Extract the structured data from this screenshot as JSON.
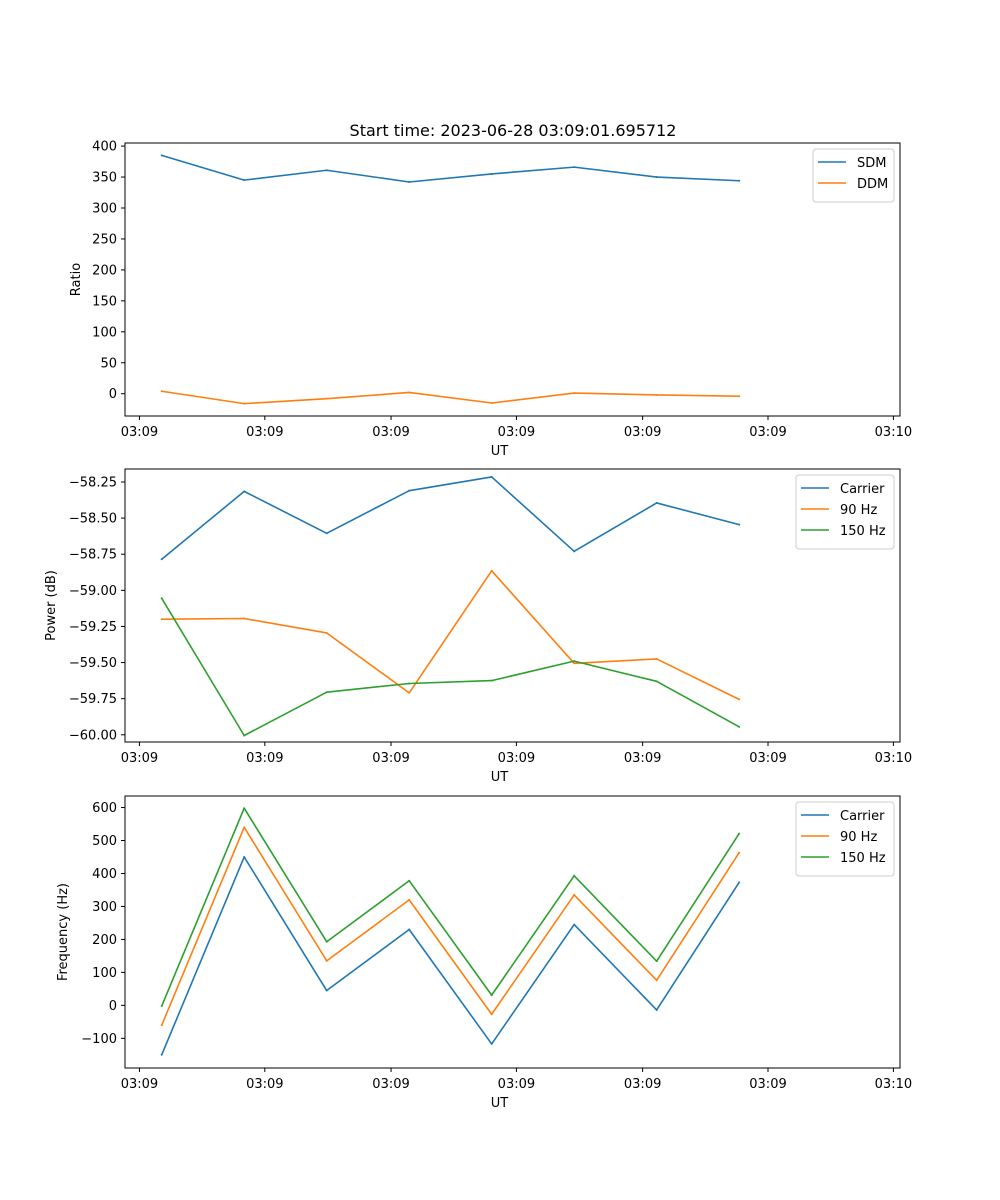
{
  "figure": {
    "title": "Start time: 2023-06-28 03:09:01.695712"
  },
  "chart_data": [
    {
      "type": "line",
      "title": "Start time: 2023-06-28 03:09:01.695712",
      "xlabel": "UT",
      "ylabel": "Ratio",
      "x": [
        1,
        2,
        3,
        4,
        5,
        6,
        7,
        8
      ],
      "xlim": [
        0.555,
        9.95
      ],
      "xticks": [
        0.73,
        2.25,
        3.78,
        5.3,
        6.83,
        8.35,
        9.87
      ],
      "xtick_labels": [
        "03:09",
        "03:09",
        "03:09",
        "03:09",
        "03:09",
        "03:09",
        "03:10"
      ],
      "ylim": [
        -36,
        405
      ],
      "yticks": [
        0,
        50,
        100,
        150,
        200,
        250,
        300,
        350,
        400
      ],
      "ytick_labels": [
        "0",
        "50",
        "100",
        "150",
        "200",
        "250",
        "300",
        "350",
        "400"
      ],
      "grid": false,
      "legend": "top-right",
      "series": [
        {
          "name": "SDM",
          "color": "#1f77b4",
          "values": [
            385,
            345,
            361,
            342,
            355,
            366,
            350,
            344
          ]
        },
        {
          "name": "DDM",
          "color": "#ff7f0e",
          "values": [
            4,
            -16,
            -8,
            2,
            -15,
            1,
            -2,
            -4
          ]
        }
      ]
    },
    {
      "type": "line",
      "title": "",
      "xlabel": "UT",
      "ylabel": "Power (dB)",
      "x": [
        1,
        2,
        3,
        4,
        5,
        6,
        7,
        8
      ],
      "xlim": [
        0.555,
        9.95
      ],
      "xticks": [
        0.73,
        2.25,
        3.78,
        5.3,
        6.83,
        8.35,
        9.87
      ],
      "xtick_labels": [
        "03:09",
        "03:09",
        "03:09",
        "03:09",
        "03:09",
        "03:09",
        "03:10"
      ],
      "ylim": [
        -60.05,
        -58.16
      ],
      "yticks": [
        -60.0,
        -59.75,
        -59.5,
        -59.25,
        -59.0,
        -58.75,
        -58.5,
        -58.25
      ],
      "ytick_labels": [
        "−60.00",
        "−59.75",
        "−59.50",
        "−59.25",
        "−59.00",
        "−58.75",
        "−58.50",
        "−58.25"
      ],
      "grid": false,
      "legend": "top-right",
      "series": [
        {
          "name": "Carrier",
          "color": "#1f77b4",
          "values": [
            -58.785,
            -58.315,
            -58.605,
            -58.31,
            -58.215,
            -58.73,
            -58.395,
            -58.545
          ]
        },
        {
          "name": "90 Hz",
          "color": "#ff7f0e",
          "values": [
            -59.2,
            -59.195,
            -59.295,
            -59.71,
            -58.865,
            -59.505,
            -59.475,
            -59.755
          ]
        },
        {
          "name": "150 Hz",
          "color": "#2ca02c",
          "values": [
            -59.055,
            -60.005,
            -59.705,
            -59.645,
            -59.625,
            -59.49,
            -59.63,
            -59.945
          ]
        }
      ]
    },
    {
      "type": "line",
      "title": "",
      "xlabel": "UT",
      "ylabel": "Frequency (Hz)",
      "x": [
        1,
        2,
        3,
        4,
        5,
        6,
        7,
        8
      ],
      "xlim": [
        0.555,
        9.95
      ],
      "xticks": [
        0.73,
        2.25,
        3.78,
        5.3,
        6.83,
        8.35,
        9.87
      ],
      "xtick_labels": [
        "03:09",
        "03:09",
        "03:09",
        "03:09",
        "03:09",
        "03:09",
        "03:10"
      ],
      "ylim": [
        -190,
        635
      ],
      "yticks": [
        -100,
        0,
        100,
        200,
        300,
        400,
        500,
        600
      ],
      "ytick_labels": [
        "−100",
        "0",
        "100",
        "200",
        "300",
        "400",
        "500",
        "600"
      ],
      "grid": false,
      "legend": "top-right",
      "series": [
        {
          "name": "Carrier",
          "color": "#1f77b4",
          "values": [
            -150,
            450,
            45,
            230,
            -117,
            245,
            -14,
            373
          ]
        },
        {
          "name": "90 Hz",
          "color": "#ff7f0e",
          "values": [
            -60,
            540,
            135,
            320,
            -27,
            335,
            76,
            463
          ]
        },
        {
          "name": "150 Hz",
          "color": "#2ca02c",
          "values": [
            -2,
            598,
            193,
            378,
            31,
            393,
            134,
            521
          ]
        }
      ]
    }
  ]
}
